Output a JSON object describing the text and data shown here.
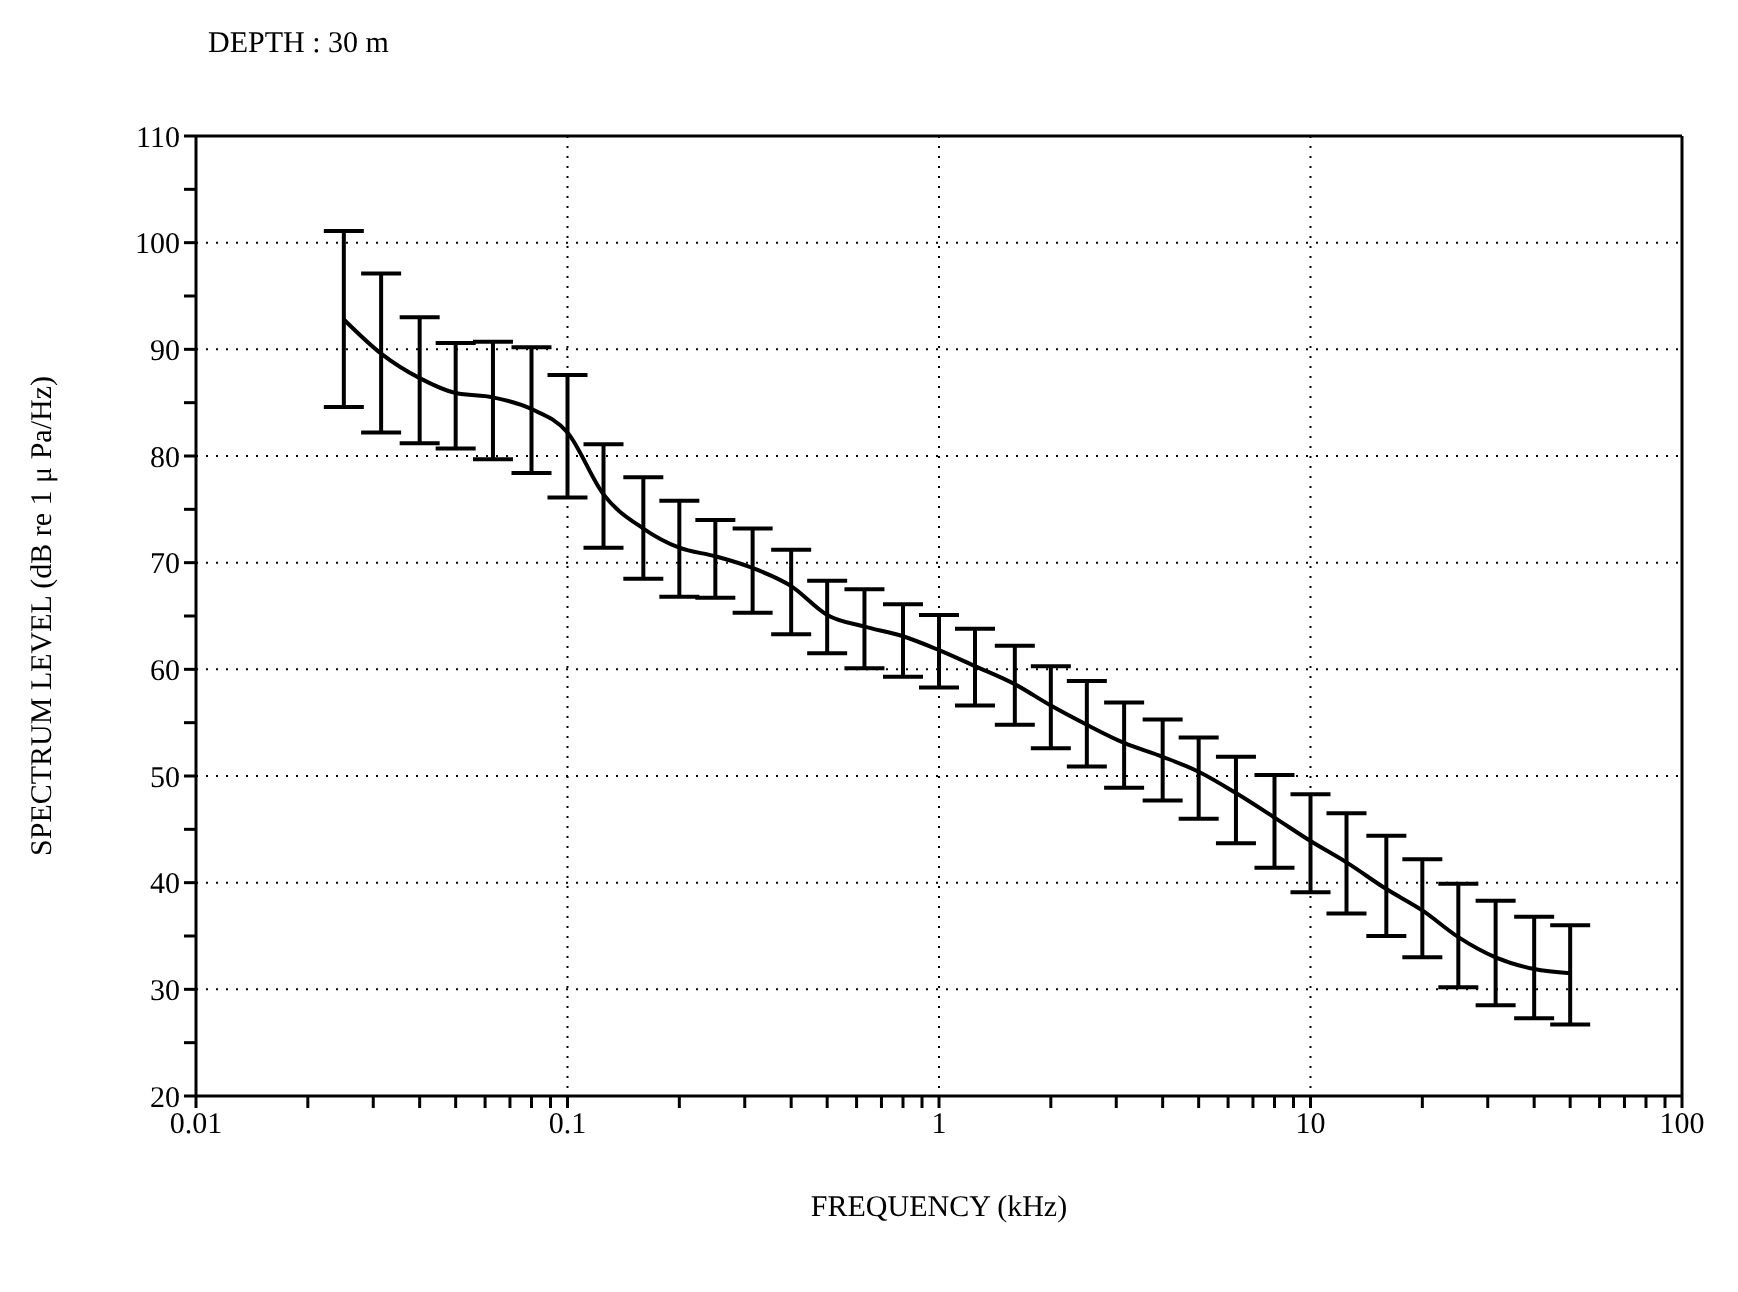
{
  "chart_data": {
    "type": "line",
    "title": "DEPTH : 30 m",
    "xlabel": "FREQUENCY (kHz)",
    "ylabel": "SPECTRUM LEVEL (dB re 1 μ Pa/Hz)",
    "x": [
      0.025,
      0.0315,
      0.04,
      0.05,
      0.063,
      0.08,
      0.1,
      0.125,
      0.16,
      0.2,
      0.25,
      0.315,
      0.4,
      0.5,
      0.63,
      0.8,
      1,
      1.25,
      1.6,
      2,
      2.5,
      3.15,
      4,
      5,
      6.3,
      8,
      10,
      12.5,
      16,
      20,
      25,
      31.5,
      40,
      50
    ],
    "series": [
      {
        "color": "#000000",
        "values": [
          92.8,
          89.6,
          87.3,
          85.9,
          85.5,
          84.4,
          82.2,
          76.4,
          73.2,
          71.4,
          70.6,
          69.5,
          67.8,
          65.1,
          64.0,
          63.1,
          61.8,
          60.3,
          58.6,
          56.6,
          54.8,
          53.1,
          51.8,
          50.4,
          48.4,
          46.1,
          43.9,
          41.9,
          39.4,
          37.4,
          34.9,
          33.0,
          31.9,
          31.5
        ],
        "errors": [
          [
            84.6,
            101.1
          ],
          [
            82.2,
            97.1
          ],
          [
            81.2,
            93.0
          ],
          [
            80.7,
            90.6
          ],
          [
            79.7,
            90.7
          ],
          [
            78.4,
            90.2
          ],
          [
            76.1,
            87.6
          ],
          [
            71.4,
            81.1
          ],
          [
            68.5,
            78.0
          ],
          [
            66.8,
            75.8
          ],
          [
            66.7,
            74.0
          ],
          [
            65.3,
            73.2
          ],
          [
            63.3,
            71.2
          ],
          [
            61.5,
            68.3
          ],
          [
            60.1,
            67.5
          ],
          [
            59.3,
            66.1
          ],
          [
            58.3,
            65.1
          ],
          [
            56.6,
            63.8
          ],
          [
            54.8,
            62.2
          ],
          [
            52.6,
            60.3
          ],
          [
            50.9,
            58.9
          ],
          [
            48.9,
            56.9
          ],
          [
            47.7,
            55.3
          ],
          [
            46.0,
            53.6
          ],
          [
            43.7,
            51.8
          ],
          [
            41.4,
            50.1
          ],
          [
            39.1,
            48.3
          ],
          [
            37.1,
            46.5
          ],
          [
            35.0,
            44.4
          ],
          [
            33.0,
            42.2
          ],
          [
            30.2,
            39.9
          ],
          [
            28.5,
            38.3
          ],
          [
            27.3,
            36.8
          ],
          [
            26.7,
            36.0
          ]
        ]
      }
    ],
    "log": "x",
    "xlim": [
      0.01,
      100
    ],
    "xticks": [
      0.01,
      {
        "value": 0.02,
        "label": null
      },
      {
        "value": 0.03,
        "label": null
      },
      {
        "value": 0.04,
        "label": null
      },
      {
        "value": 0.05,
        "label": null
      },
      {
        "value": 0.06,
        "label": null
      },
      {
        "value": 0.07,
        "label": null
      },
      {
        "value": 0.08,
        "label": null
      },
      {
        "value": 0.09,
        "label": null
      },
      0.1,
      {
        "value": 0.2,
        "label": null
      },
      {
        "value": 0.3,
        "label": null
      },
      {
        "value": 0.4,
        "label": null
      },
      {
        "value": 0.5,
        "label": null
      },
      {
        "value": 0.6,
        "label": null
      },
      {
        "value": 0.7,
        "label": null
      },
      {
        "value": 0.8,
        "label": null
      },
      {
        "value": 0.9,
        "label": null
      },
      1,
      {
        "value": 2,
        "label": null
      },
      {
        "value": 3,
        "label": null
      },
      {
        "value": 4,
        "label": null
      },
      {
        "value": 5,
        "label": null
      },
      {
        "value": 6,
        "label": null
      },
      {
        "value": 7,
        "label": null
      },
      {
        "value": 8,
        "label": null
      },
      {
        "value": 9,
        "label": null
      },
      10,
      {
        "value": 20,
        "label": null
      },
      {
        "value": 30,
        "label": null
      },
      {
        "value": 40,
        "label": null
      },
      {
        "value": 50,
        "label": null
      },
      {
        "value": 60,
        "label": null
      },
      {
        "value": 70,
        "label": null
      },
      {
        "value": 80,
        "label": null
      },
      {
        "value": 90,
        "label": null
      },
      100
    ],
    "ylim": [
      20,
      110
    ],
    "yticks": [
      20,
      {
        "value": 25,
        "label": null
      },
      30,
      {
        "value": 35,
        "label": null
      },
      40,
      {
        "value": 45,
        "label": null
      },
      50,
      {
        "value": 55,
        "label": null
      },
      60,
      {
        "value": 65,
        "label": null
      },
      70,
      {
        "value": 75,
        "label": null
      },
      80,
      {
        "value": 85,
        "label": null
      },
      90,
      {
        "value": 95,
        "label": null
      },
      100,
      {
        "value": 105,
        "label": null
      },
      110
    ],
    "grid": true,
    "legend": false,
    "marker": "none",
    "line_style": "solid"
  }
}
